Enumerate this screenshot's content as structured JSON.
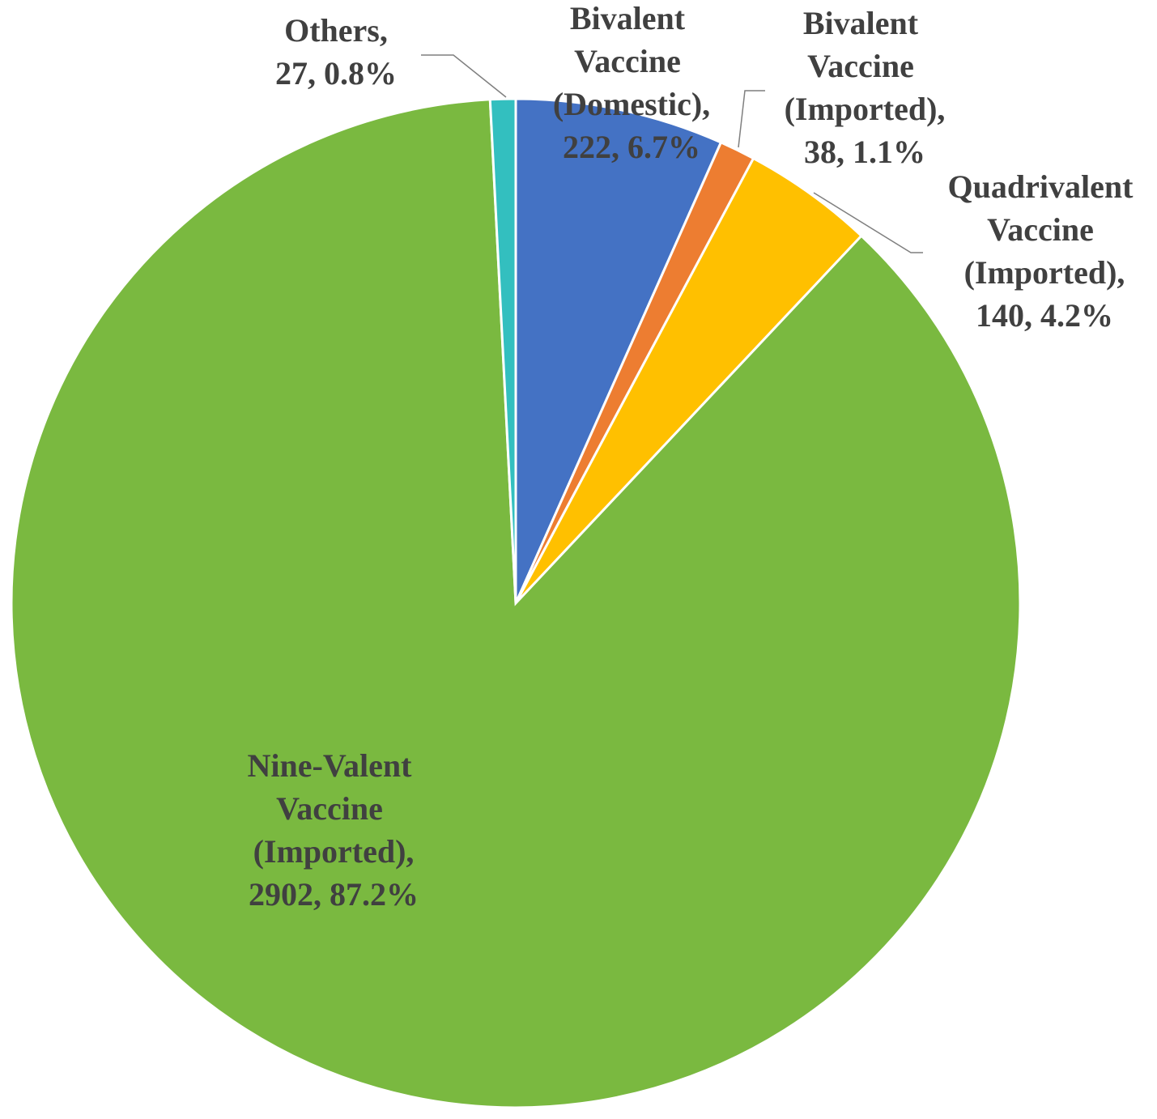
{
  "chart_data": {
    "type": "pie",
    "categories": [
      "Bivalent Vaccine (Domestic),",
      "Bivalent Vaccine (Imported),",
      "Quadrivalent Vaccine (Imported),",
      "Nine-Valent Vaccine (Imported),",
      "Others,"
    ],
    "values": [
      222,
      38,
      140,
      2902,
      27
    ],
    "value_labels": [
      "222, 6.7%",
      "38, 1.1%",
      "140, 4.2%",
      "2902, 87.2%",
      "27, 0.8%"
    ],
    "colors": [
      "#4472c4",
      "#ed7d31",
      "#ffc000",
      "#7ab940",
      "#33bfbf"
    ]
  }
}
